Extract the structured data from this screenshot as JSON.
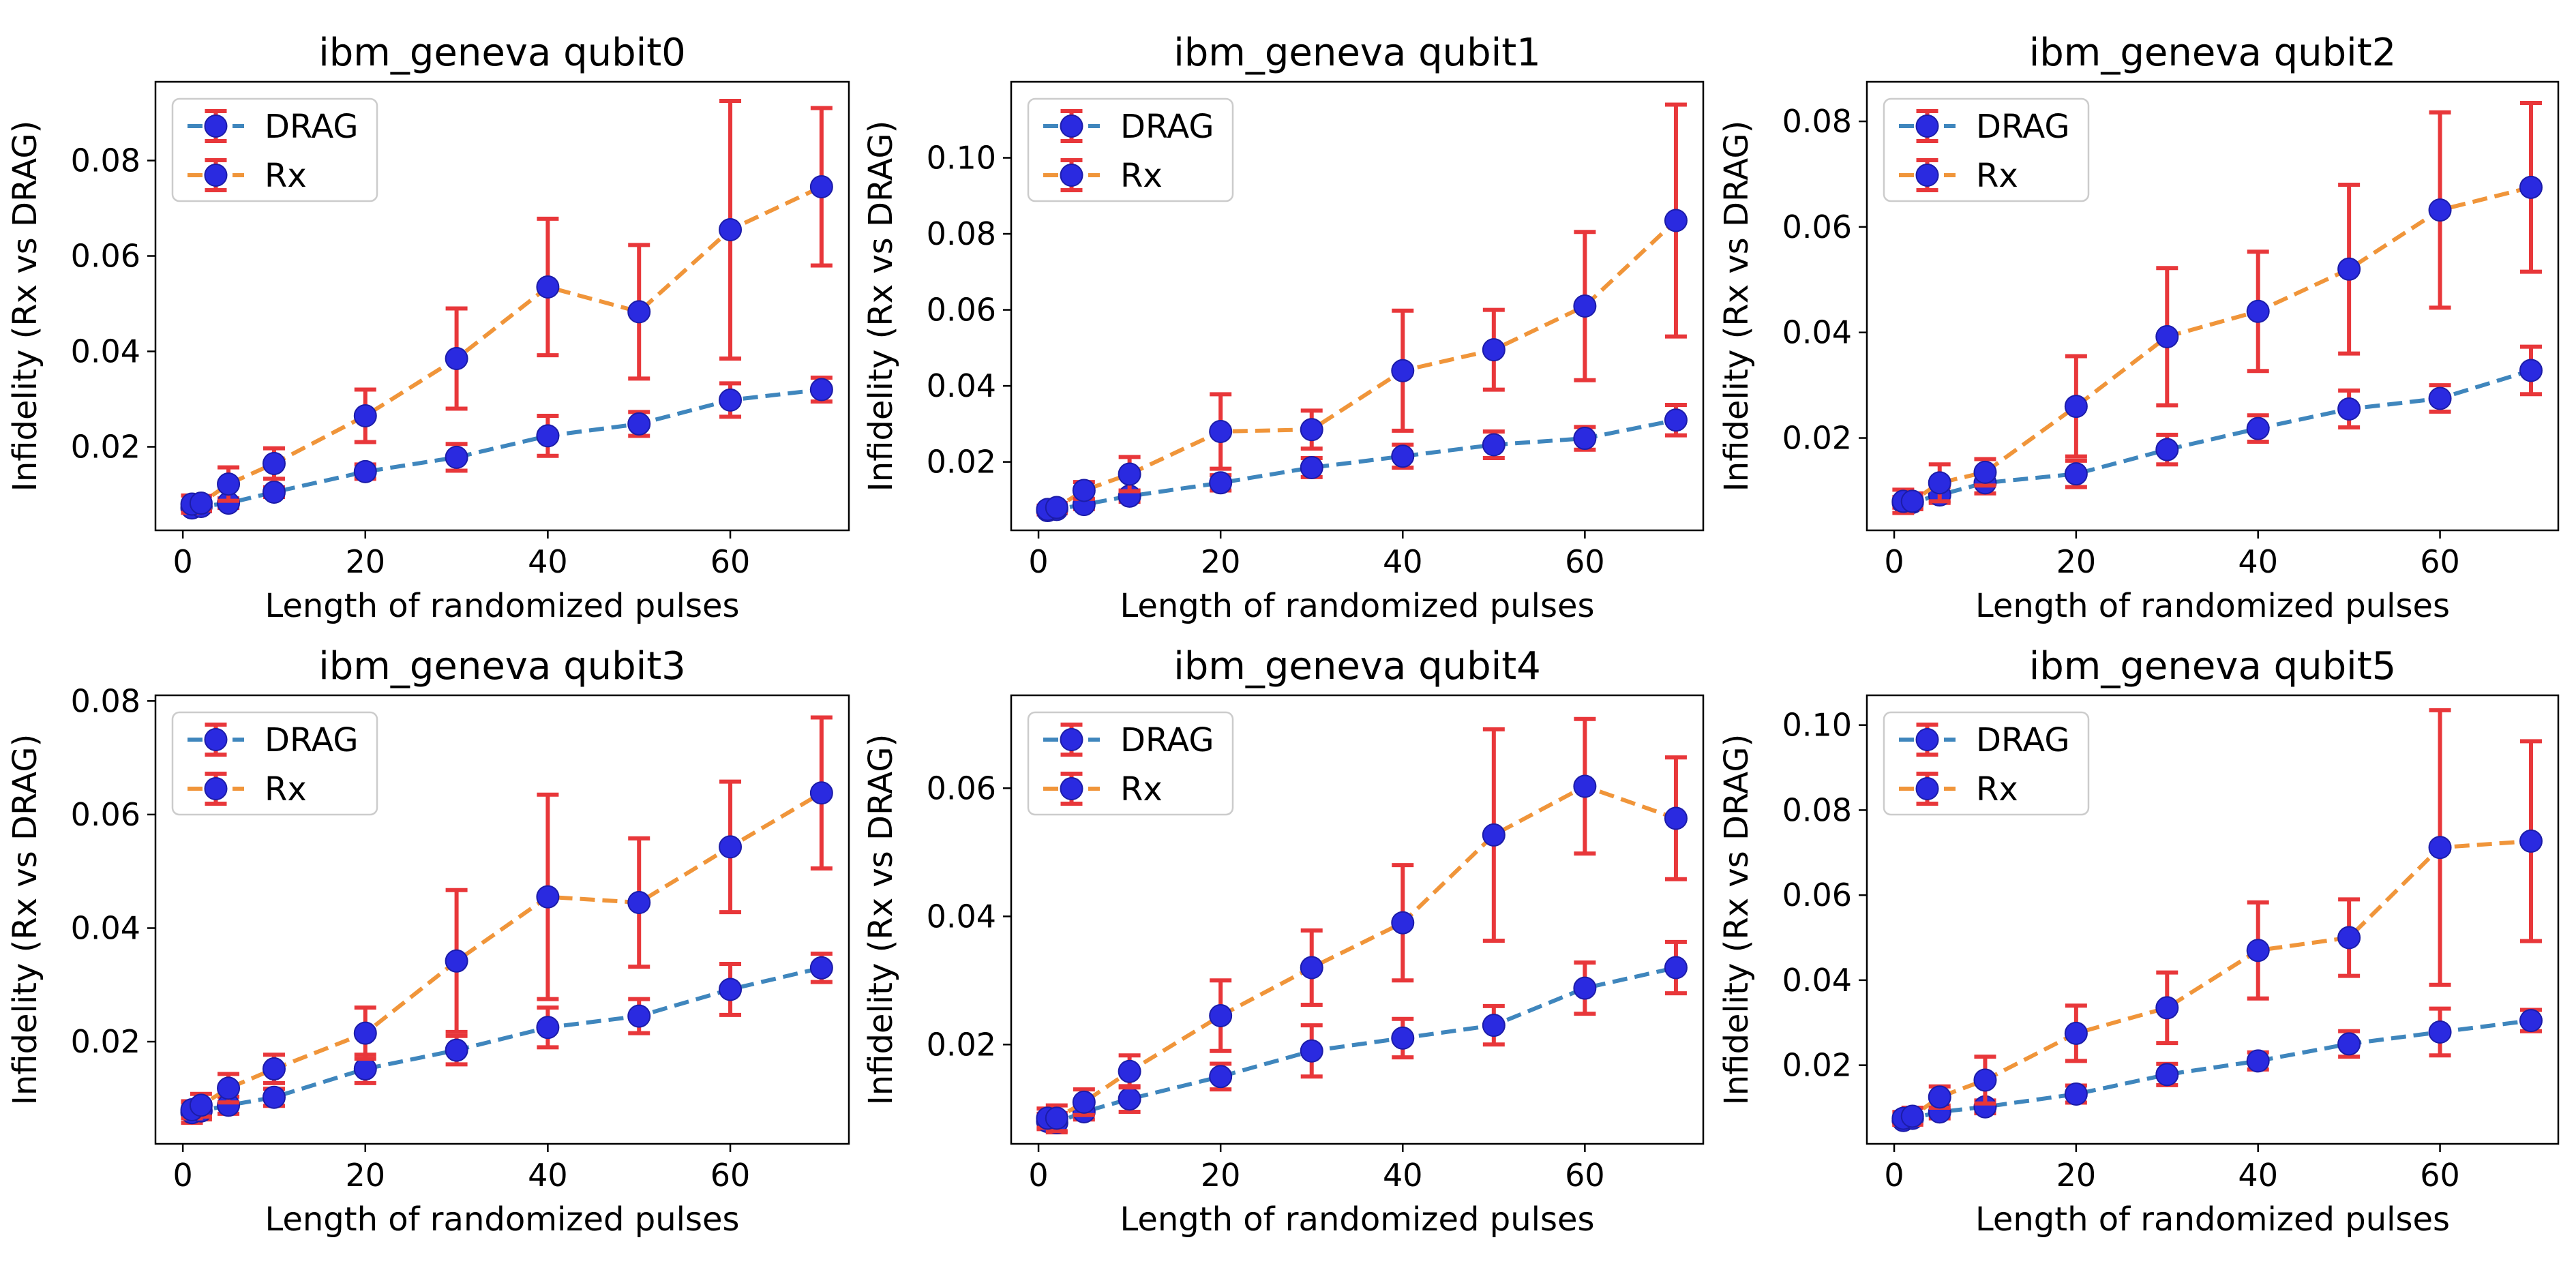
{
  "figure_style": {
    "drag_color": "#3f86bd",
    "rx_color": "#f0953a",
    "marker_color": "#2a2ae0",
    "errorbar_color": "#e8373a"
  },
  "chart_data": [
    {
      "type": "line",
      "title": "ibm_geneva qubit0",
      "xlabel": "Length of randomized pulses",
      "ylabel": "Infidelity (Rx vs DRAG)",
      "xlim": [
        -3,
        73
      ],
      "ylim": [
        0.0025,
        0.0965
      ],
      "xticks": [
        0,
        20,
        40,
        60
      ],
      "xticklabels": [
        "0",
        "20",
        "40",
        "60"
      ],
      "yticks": [
        0.02,
        0.04,
        0.06,
        0.08
      ],
      "yticklabels": [
        "0.02",
        "0.04",
        "0.06",
        "0.08"
      ],
      "legend": [
        "DRAG",
        "Rx"
      ],
      "x": [
        1,
        2,
        5,
        10,
        20,
        30,
        40,
        50,
        60,
        70
      ],
      "series": [
        {
          "name": "DRAG",
          "values": [
            0.0072,
            0.0075,
            0.0082,
            0.0105,
            0.0148,
            0.0178,
            0.0223,
            0.0248,
            0.0298,
            0.032
          ],
          "err": [
            0.001,
            0.001,
            0.001,
            0.001,
            0.0015,
            0.0028,
            0.0042,
            0.0025,
            0.0035,
            0.0025
          ]
        },
        {
          "name": "Rx",
          "values": [
            0.008,
            0.0082,
            0.0122,
            0.0165,
            0.0265,
            0.0385,
            0.0535,
            0.0483,
            0.0655,
            0.0745
          ],
          "err": [
            0.0018,
            0.0015,
            0.0035,
            0.0032,
            0.0055,
            0.0105,
            0.0143,
            0.014,
            0.027,
            0.0165
          ]
        }
      ]
    },
    {
      "type": "line",
      "title": "ibm_geneva qubit1",
      "xlabel": "Length of randomized pulses",
      "ylabel": "Infidelity (Rx vs DRAG)",
      "xlim": [
        -3,
        73
      ],
      "ylim": [
        0.002,
        0.12
      ],
      "xticks": [
        0,
        20,
        40,
        60
      ],
      "xticklabels": [
        "0",
        "20",
        "40",
        "60"
      ],
      "yticks": [
        0.02,
        0.04,
        0.06,
        0.08,
        0.1
      ],
      "yticklabels": [
        "0.02",
        "0.04",
        "0.06",
        "0.08",
        "0.10"
      ],
      "legend": [
        "DRAG",
        "Rx"
      ],
      "x": [
        1,
        2,
        5,
        10,
        20,
        30,
        40,
        50,
        60,
        70
      ],
      "series": [
        {
          "name": "DRAG",
          "values": [
            0.0072,
            0.0075,
            0.0088,
            0.011,
            0.0145,
            0.0185,
            0.0215,
            0.0245,
            0.0262,
            0.031
          ],
          "err": [
            0.001,
            0.001,
            0.0012,
            0.0015,
            0.002,
            0.0025,
            0.003,
            0.0035,
            0.003,
            0.004
          ]
        },
        {
          "name": "Rx",
          "values": [
            0.0075,
            0.008,
            0.0125,
            0.0168,
            0.028,
            0.0285,
            0.044,
            0.0495,
            0.061,
            0.0835
          ],
          "err": [
            0.001,
            0.0012,
            0.0022,
            0.0045,
            0.0098,
            0.005,
            0.0158,
            0.0105,
            0.0195,
            0.0305
          ]
        }
      ]
    },
    {
      "type": "line",
      "title": "ibm_geneva qubit2",
      "xlabel": "Length of randomized pulses",
      "ylabel": "Infidelity (Rx vs DRAG)",
      "xlim": [
        -3,
        73
      ],
      "ylim": [
        0.0025,
        0.0875
      ],
      "xticks": [
        0,
        20,
        40,
        60
      ],
      "xticklabels": [
        "0",
        "20",
        "40",
        "60"
      ],
      "yticks": [
        0.02,
        0.04,
        0.06,
        0.08
      ],
      "yticklabels": [
        "0.02",
        "0.04",
        "0.06",
        "0.08"
      ],
      "legend": [
        "DRAG",
        "Rx"
      ],
      "x": [
        1,
        2,
        5,
        10,
        20,
        30,
        40,
        50,
        60,
        70
      ],
      "series": [
        {
          "name": "DRAG",
          "values": [
            0.0078,
            0.0078,
            0.0092,
            0.0115,
            0.0132,
            0.0178,
            0.0218,
            0.0255,
            0.0275,
            0.0328
          ],
          "err": [
            0.001,
            0.001,
            0.0015,
            0.002,
            0.0025,
            0.0028,
            0.0025,
            0.0035,
            0.0025,
            0.0045
          ]
        },
        {
          "name": "Rx",
          "values": [
            0.008,
            0.008,
            0.0115,
            0.0135,
            0.026,
            0.0392,
            0.044,
            0.052,
            0.0632,
            0.0675
          ],
          "err": [
            0.0022,
            0.0015,
            0.0035,
            0.0025,
            0.0095,
            0.013,
            0.0113,
            0.016,
            0.0185,
            0.016
          ]
        }
      ]
    },
    {
      "type": "line",
      "title": "ibm_geneva qubit3",
      "xlabel": "Length of randomized pulses",
      "ylabel": "Infidelity (Rx vs DRAG)",
      "xlim": [
        -3,
        73
      ],
      "ylim": [
        0.002,
        0.081
      ],
      "xticks": [
        0,
        20,
        40,
        60
      ],
      "xticklabels": [
        "0",
        "20",
        "40",
        "60"
      ],
      "yticks": [
        0.02,
        0.04,
        0.06,
        0.08
      ],
      "yticklabels": [
        "0.02",
        "0.04",
        "0.06",
        "0.08"
      ],
      "legend": [
        "DRAG",
        "Rx"
      ],
      "x": [
        1,
        2,
        5,
        10,
        20,
        30,
        40,
        50,
        60,
        70
      ],
      "series": [
        {
          "name": "DRAG",
          "values": [
            0.0075,
            0.0078,
            0.0088,
            0.0102,
            0.0152,
            0.0185,
            0.0225,
            0.0245,
            0.0292,
            0.033
          ],
          "err": [
            0.0018,
            0.0015,
            0.0015,
            0.0015,
            0.0025,
            0.0025,
            0.0035,
            0.003,
            0.0045,
            0.0025
          ]
        },
        {
          "name": "Rx",
          "values": [
            0.008,
            0.0088,
            0.0118,
            0.0152,
            0.0215,
            0.0342,
            0.0455,
            0.0445,
            0.0543,
            0.0638
          ],
          "err": [
            0.0015,
            0.002,
            0.0025,
            0.0025,
            0.0045,
            0.0125,
            0.018,
            0.0113,
            0.0115,
            0.0133
          ]
        }
      ]
    },
    {
      "type": "line",
      "title": "ibm_geneva qubit4",
      "xlabel": "Length of randomized pulses",
      "ylabel": "Infidelity (Rx vs DRAG)",
      "xlim": [
        -3,
        73
      ],
      "ylim": [
        0.0045,
        0.0745
      ],
      "xticks": [
        0,
        20,
        40,
        60
      ],
      "xticklabels": [
        "0",
        "20",
        "40",
        "60"
      ],
      "yticks": [
        0.02,
        0.04,
        0.06
      ],
      "yticklabels": [
        "0.02",
        "0.04",
        "0.06"
      ],
      "legend": [
        "DRAG",
        "Rx"
      ],
      "x": [
        1,
        2,
        5,
        10,
        20,
        30,
        40,
        50,
        60,
        70
      ],
      "series": [
        {
          "name": "DRAG",
          "values": [
            0.008,
            0.0078,
            0.0095,
            0.0115,
            0.015,
            0.019,
            0.021,
            0.023,
            0.0288,
            0.032
          ],
          "err": [
            0.0012,
            0.0015,
            0.0012,
            0.002,
            0.002,
            0.004,
            0.003,
            0.003,
            0.004,
            0.004
          ]
        },
        {
          "name": "Rx",
          "values": [
            0.0085,
            0.0085,
            0.011,
            0.0158,
            0.0245,
            0.032,
            0.039,
            0.0527,
            0.0603,
            0.0553
          ],
          "err": [
            0.0015,
            0.002,
            0.002,
            0.0025,
            0.0055,
            0.0058,
            0.009,
            0.0165,
            0.0105,
            0.0095
          ]
        }
      ]
    },
    {
      "type": "line",
      "title": "ibm_geneva qubit5",
      "xlabel": "Length of randomized pulses",
      "ylabel": "Infidelity (Rx vs DRAG)",
      "xlim": [
        -3,
        73
      ],
      "ylim": [
        0.0015,
        0.107
      ],
      "xticks": [
        0,
        20,
        40,
        60
      ],
      "xticklabels": [
        "0",
        "20",
        "40",
        "60"
      ],
      "yticks": [
        0.02,
        0.04,
        0.06,
        0.08,
        0.1
      ],
      "yticklabels": [
        "0.02",
        "0.04",
        "0.06",
        "0.08",
        "0.10"
      ],
      "legend": [
        "DRAG",
        "Rx"
      ],
      "x": [
        1,
        2,
        5,
        10,
        20,
        30,
        40,
        50,
        60,
        70
      ],
      "series": [
        {
          "name": "DRAG",
          "values": [
            0.007,
            0.0075,
            0.009,
            0.0102,
            0.0132,
            0.0178,
            0.021,
            0.025,
            0.0278,
            0.0305
          ],
          "err": [
            0.001,
            0.001,
            0.0015,
            0.0015,
            0.002,
            0.0025,
            0.002,
            0.003,
            0.0055,
            0.0025
          ]
        },
        {
          "name": "Rx",
          "values": [
            0.0075,
            0.008,
            0.0125,
            0.0165,
            0.0275,
            0.0335,
            0.047,
            0.05,
            0.0712,
            0.0727
          ],
          "err": [
            0.0015,
            0.002,
            0.0025,
            0.0055,
            0.0065,
            0.0083,
            0.0113,
            0.009,
            0.0323,
            0.0235
          ]
        }
      ]
    }
  ]
}
